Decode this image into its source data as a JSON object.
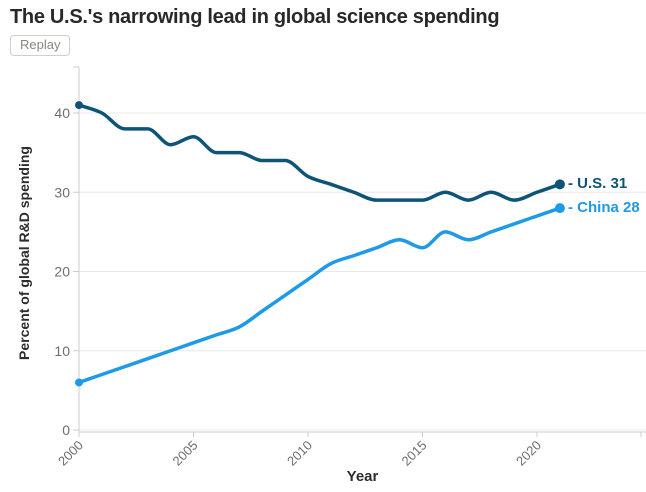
{
  "header": {
    "title": "The U.S.'s narrowing lead in global science spending",
    "replay_label": "Replay"
  },
  "chart_data": {
    "type": "line",
    "x": [
      2000,
      2001,
      2002,
      2003,
      2004,
      2005,
      2006,
      2007,
      2008,
      2009,
      2010,
      2011,
      2012,
      2013,
      2014,
      2015,
      2016,
      2017,
      2018,
      2019,
      2020,
      2021
    ],
    "series": [
      {
        "name": "U.S.",
        "end_value": 31,
        "end_label": "- U.S. 31",
        "color": "#0e5479",
        "values": [
          41,
          40,
          38,
          38,
          36,
          37,
          35,
          35,
          34,
          34,
          32,
          31,
          30,
          29,
          29,
          29,
          30,
          29,
          30,
          29,
          30,
          31
        ]
      },
      {
        "name": "China",
        "end_value": 28,
        "end_label": "- China 28",
        "color": "#1e9ae6",
        "values": [
          6,
          7,
          8,
          9,
          10,
          11,
          12,
          13,
          15,
          17,
          19,
          21,
          22,
          23,
          24,
          23,
          25,
          24,
          25,
          26,
          27,
          28
        ]
      }
    ],
    "xlabel": "Year",
    "ylabel": "Percent of global R&D spending",
    "x_ticks": [
      2000,
      2005,
      2010,
      2015,
      2020
    ],
    "y_ticks": [
      0,
      10,
      20,
      30,
      40
    ],
    "xlim": [
      2000,
      2021
    ],
    "ylim": [
      0,
      46
    ],
    "grid": true,
    "legend_position": "end-of-line",
    "style": {
      "grid_color": "#e8e8e8",
      "axis_color": "#cccccc",
      "tick_text_color": "#6e6e6e",
      "axis_title_color": "#2d2d2d"
    }
  }
}
